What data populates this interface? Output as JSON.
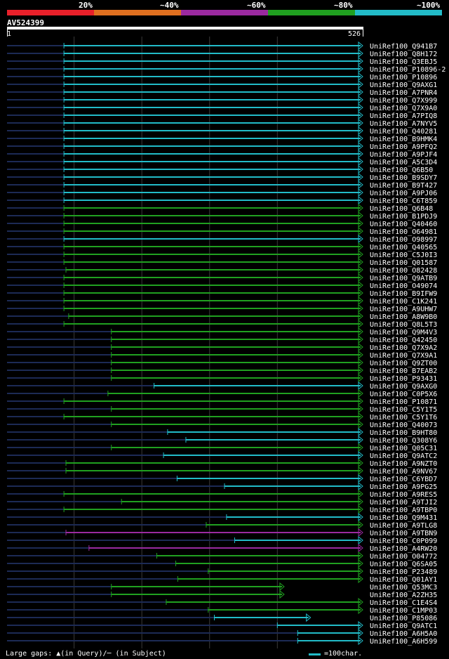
{
  "legend": {
    "labels": [
      "20%",
      "~40%",
      "~60%",
      "~80%",
      "~100%"
    ],
    "colors": [
      "#e8202a",
      "#e07020",
      "#9b2aa0",
      "#20a020",
      "#22bbc8"
    ]
  },
  "query": {
    "name": "AV524399",
    "start": "1",
    "end": "526"
  },
  "footer": {
    "gaps_text": "Large gaps: ▲(in Query)/─ (in Subject)",
    "scale_text": "=100char."
  },
  "chart_data": {
    "type": "alignment-overview",
    "x_axis": {
      "min": 1,
      "max": 526
    },
    "gridlines": [
      100,
      200,
      300,
      400
    ],
    "series": [
      {
        "name": "UniRef100_Q941B7",
        "start": 85,
        "end": 526,
        "identity": "~100%"
      },
      {
        "name": "UniRef100_Q8H172",
        "start": 85,
        "end": 526,
        "identity": "~100%"
      },
      {
        "name": "UniRef100_Q3EBJ5",
        "start": 85,
        "end": 526,
        "identity": "~100%"
      },
      {
        "name": "UniRef100_P10896-2",
        "start": 85,
        "end": 526,
        "identity": "~100%"
      },
      {
        "name": "UniRef100_P10896",
        "start": 85,
        "end": 526,
        "identity": "~100%"
      },
      {
        "name": "UniRef100_Q9AXG1",
        "start": 85,
        "end": 526,
        "identity": "~100%"
      },
      {
        "name": "UniRef100_A7PNR4",
        "start": 85,
        "end": 526,
        "identity": "~100%"
      },
      {
        "name": "UniRef100_Q7X999",
        "start": 85,
        "end": 526,
        "identity": "~100%"
      },
      {
        "name": "UniRef100_Q7X9A0",
        "start": 85,
        "end": 526,
        "identity": "~100%"
      },
      {
        "name": "UniRef100_A7PIQ8",
        "start": 85,
        "end": 526,
        "identity": "~100%"
      },
      {
        "name": "UniRef100_A7NYV5",
        "start": 85,
        "end": 526,
        "identity": "~100%"
      },
      {
        "name": "UniRef100_Q40281",
        "start": 85,
        "end": 526,
        "identity": "~100%"
      },
      {
        "name": "UniRef100_B9HMK4",
        "start": 85,
        "end": 526,
        "identity": "~100%"
      },
      {
        "name": "UniRef100_A9PFQ2",
        "start": 85,
        "end": 526,
        "identity": "~100%"
      },
      {
        "name": "UniRef100_A9PJF4",
        "start": 85,
        "end": 526,
        "identity": "~100%"
      },
      {
        "name": "UniRef100_A5C3D4",
        "start": 85,
        "end": 526,
        "identity": "~100%"
      },
      {
        "name": "UniRef100_Q6B50",
        "start": 85,
        "end": 526,
        "identity": "~100%"
      },
      {
        "name": "UniRef100_B9SDY7",
        "start": 85,
        "end": 526,
        "identity": "~100%"
      },
      {
        "name": "UniRef100_B9T427",
        "start": 85,
        "end": 526,
        "identity": "~100%"
      },
      {
        "name": "UniRef100_A9PJ06",
        "start": 85,
        "end": 526,
        "identity": "~100%"
      },
      {
        "name": "UniRef100_C6T859",
        "start": 85,
        "end": 526,
        "identity": "~100%"
      },
      {
        "name": "UniRef100_Q6B48",
        "start": 85,
        "end": 526,
        "identity": "~80%"
      },
      {
        "name": "UniRef100_B1PDJ9",
        "start": 85,
        "end": 526,
        "identity": "~80%"
      },
      {
        "name": "UniRef100_Q40460",
        "start": 85,
        "end": 526,
        "identity": "~80%"
      },
      {
        "name": "UniRef100_O64981",
        "start": 85,
        "end": 526,
        "identity": "~80%"
      },
      {
        "name": "UniRef100_O98997",
        "start": 85,
        "end": 526,
        "identity": "~100%"
      },
      {
        "name": "UniRef100_Q40565",
        "start": 85,
        "end": 526,
        "identity": "~80%"
      },
      {
        "name": "UniRef100_C5J0I3",
        "start": 85,
        "end": 526,
        "identity": "~80%"
      },
      {
        "name": "UniRef100_Q01587",
        "start": 85,
        "end": 526,
        "identity": "~80%"
      },
      {
        "name": "UniRef100_O82428",
        "start": 88,
        "end": 526,
        "identity": "~80%"
      },
      {
        "name": "UniRef100_Q9ATB9",
        "start": 85,
        "end": 526,
        "identity": "~80%"
      },
      {
        "name": "UniRef100_O49074",
        "start": 85,
        "end": 526,
        "identity": "~80%"
      },
      {
        "name": "UniRef100_B9IFW9",
        "start": 85,
        "end": 526,
        "identity": "~80%"
      },
      {
        "name": "UniRef100_C1K241",
        "start": 85,
        "end": 526,
        "identity": "~80%"
      },
      {
        "name": "UniRef100_A9UHW7",
        "start": 85,
        "end": 526,
        "identity": "~80%"
      },
      {
        "name": "UniRef100_A8W9B0",
        "start": 92,
        "end": 526,
        "identity": "~80%"
      },
      {
        "name": "UniRef100_Q8L5T3",
        "start": 85,
        "end": 526,
        "identity": "~80%"
      },
      {
        "name": "UniRef100_Q9M4V3",
        "start": 155,
        "end": 526,
        "identity": "~80%"
      },
      {
        "name": "UniRef100_Q42450",
        "start": 155,
        "end": 526,
        "identity": "~80%"
      },
      {
        "name": "UniRef100_Q7X9A2",
        "start": 155,
        "end": 526,
        "identity": "~80%"
      },
      {
        "name": "UniRef100_Q7X9A1",
        "start": 155,
        "end": 526,
        "identity": "~80%"
      },
      {
        "name": "UniRef100_Q9ZT00",
        "start": 155,
        "end": 526,
        "identity": "~80%"
      },
      {
        "name": "UniRef100_B7EAB2",
        "start": 155,
        "end": 526,
        "identity": "~80%"
      },
      {
        "name": "UniRef100_P93431",
        "start": 155,
        "end": 526,
        "identity": "~80%"
      },
      {
        "name": "UniRef100_Q9AXG0",
        "start": 218,
        "end": 526,
        "identity": "~100%"
      },
      {
        "name": "UniRef100_C0P5X6",
        "start": 150,
        "end": 526,
        "identity": "~80%"
      },
      {
        "name": "UniRef100_P10871",
        "start": 85,
        "end": 526,
        "identity": "~80%"
      },
      {
        "name": "UniRef100_C5Y1T5",
        "start": 155,
        "end": 526,
        "identity": "~80%"
      },
      {
        "name": "UniRef100_C5Y1T6",
        "start": 85,
        "end": 526,
        "identity": "~80%"
      },
      {
        "name": "UniRef100_Q40073",
        "start": 155,
        "end": 526,
        "identity": "~80%"
      },
      {
        "name": "UniRef100_B9HT80",
        "start": 238,
        "end": 526,
        "identity": "~100%"
      },
      {
        "name": "UniRef100_Q308Y6",
        "start": 265,
        "end": 526,
        "identity": "~100%"
      },
      {
        "name": "UniRef100_Q05C31",
        "start": 155,
        "end": 526,
        "identity": "~80%"
      },
      {
        "name": "UniRef100_Q9ATC2",
        "start": 232,
        "end": 526,
        "identity": "~100%"
      },
      {
        "name": "UniRef100_A9NZT0",
        "start": 88,
        "end": 526,
        "identity": "~80%"
      },
      {
        "name": "UniRef100_A9NV67",
        "start": 88,
        "end": 526,
        "identity": "~80%"
      },
      {
        "name": "UniRef100_C6YBD7",
        "start": 252,
        "end": 526,
        "identity": "~100%"
      },
      {
        "name": "UniRef100_A9PG25",
        "start": 322,
        "end": 526,
        "identity": "~100%"
      },
      {
        "name": "UniRef100_A9RES5",
        "start": 85,
        "end": 526,
        "identity": "~80%"
      },
      {
        "name": "UniRef100_A9TJI2",
        "start": 170,
        "end": 526,
        "identity": "~80%"
      },
      {
        "name": "UniRef100_A9TBP0",
        "start": 85,
        "end": 526,
        "identity": "~80%"
      },
      {
        "name": "UniRef100_Q9M431",
        "start": 325,
        "end": 526,
        "identity": "~100%"
      },
      {
        "name": "UniRef100_A9TLG8",
        "start": 295,
        "end": 526,
        "identity": "~80%"
      },
      {
        "name": "UniRef100_A9TBN9",
        "start": 88,
        "end": 526,
        "identity": "~60%"
      },
      {
        "name": "UniRef100_C0P099",
        "start": 337,
        "end": 526,
        "identity": "~100%"
      },
      {
        "name": "UniRef100_A4RW20",
        "start": 122,
        "end": 526,
        "identity": "~60%"
      },
      {
        "name": "UniRef100_O04772",
        "start": 222,
        "end": 526,
        "identity": "~80%"
      },
      {
        "name": "UniRef100_Q6SA05",
        "start": 250,
        "end": 526,
        "identity": "~80%"
      },
      {
        "name": "UniRef100_P23489",
        "start": 298,
        "end": 526,
        "identity": "~80%"
      },
      {
        "name": "UniRef100_Q01AY1",
        "start": 253,
        "end": 526,
        "identity": "~80%"
      },
      {
        "name": "UniRef100_Q53MC3",
        "start": 155,
        "end": 410,
        "identity": "~80%"
      },
      {
        "name": "UniRef100_A2ZH35",
        "start": 155,
        "end": 410,
        "identity": "~80%"
      },
      {
        "name": "UniRef100_C1E4S4",
        "start": 236,
        "end": 526,
        "identity": "~80%"
      },
      {
        "name": "UniRef100_C1MP03",
        "start": 298,
        "end": 526,
        "identity": "~80%"
      },
      {
        "name": "UniRef100_P85086",
        "start": 307,
        "end": 449,
        "identity": "~100%"
      },
      {
        "name": "UniRef100_Q9ATC1",
        "start": 400,
        "end": 526,
        "identity": "~100%"
      },
      {
        "name": "UniRef100_A6H5A0",
        "start": 430,
        "end": 526,
        "identity": "~100%"
      },
      {
        "name": "UniRef100_A6H599",
        "start": 430,
        "end": 526,
        "identity": "~100%"
      }
    ]
  }
}
